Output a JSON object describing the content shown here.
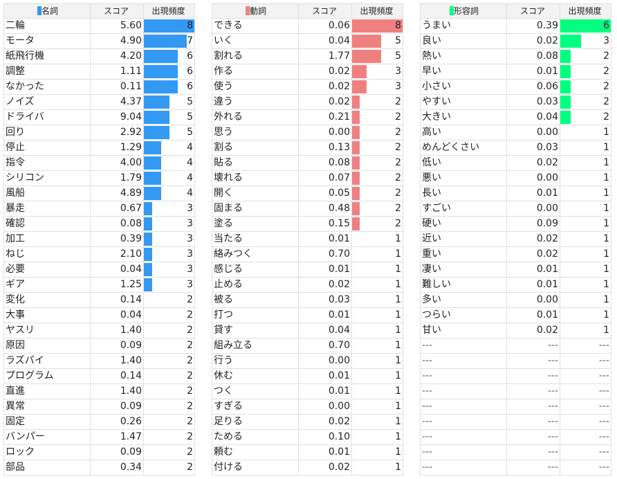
{
  "tables": [
    {
      "header": [
        "名詞",
        "スコア",
        "出現頻度"
      ],
      "color": "#3399f3",
      "rows": [
        [
          "二輪",
          "5.60",
          8
        ],
        [
          "モータ",
          "4.90",
          7
        ],
        [
          "紙飛行機",
          "4.20",
          6
        ],
        [
          "調整",
          "1.11",
          6
        ],
        [
          "なかった",
          "0.11",
          6
        ],
        [
          "ノイズ",
          "4.37",
          5
        ],
        [
          "ドライバ",
          "9.04",
          5
        ],
        [
          "回り",
          "2.92",
          5
        ],
        [
          "停止",
          "1.29",
          4
        ],
        [
          "指令",
          "4.00",
          4
        ],
        [
          "シリコン",
          "1.79",
          4
        ],
        [
          "風船",
          "4.89",
          4
        ],
        [
          "暴走",
          "0.67",
          3
        ],
        [
          "確認",
          "0.08",
          3
        ],
        [
          "加工",
          "0.39",
          3
        ],
        [
          "ねじ",
          "2.10",
          3
        ],
        [
          "必要",
          "0.04",
          3
        ],
        [
          "ギア",
          "1.25",
          3
        ],
        [
          "変化",
          "0.14",
          2
        ],
        [
          "大事",
          "0.04",
          2
        ],
        [
          "ヤスリ",
          "1.40",
          2
        ],
        [
          "原因",
          "0.09",
          2
        ],
        [
          "ラズパイ",
          "1.40",
          2
        ],
        [
          "プログラム",
          "0.14",
          2
        ],
        [
          "直進",
          "1.40",
          2
        ],
        [
          "異常",
          "0.09",
          2
        ],
        [
          "固定",
          "0.26",
          2
        ],
        [
          "バンパー",
          "1.47",
          2
        ],
        [
          "ロック",
          "0.09",
          2
        ],
        [
          "部品",
          "0.34",
          2
        ]
      ]
    },
    {
      "header": [
        "動詞",
        "スコア",
        "出現頻度"
      ],
      "color": "#f08080",
      "rows": [
        [
          "できる",
          "0.06",
          8
        ],
        [
          "いく",
          "0.04",
          5
        ],
        [
          "割れる",
          "1.77",
          5
        ],
        [
          "作る",
          "0.02",
          3
        ],
        [
          "使う",
          "0.02",
          3
        ],
        [
          "違う",
          "0.02",
          2
        ],
        [
          "外れる",
          "0.21",
          2
        ],
        [
          "思う",
          "0.00",
          2
        ],
        [
          "割る",
          "0.13",
          2
        ],
        [
          "貼る",
          "0.08",
          2
        ],
        [
          "壊れる",
          "0.07",
          2
        ],
        [
          "開く",
          "0.05",
          2
        ],
        [
          "固まる",
          "0.48",
          2
        ],
        [
          "塗る",
          "0.15",
          2
        ],
        [
          "当たる",
          "0.01",
          1
        ],
        [
          "絡みつく",
          "0.70",
          1
        ],
        [
          "感じる",
          "0.01",
          1
        ],
        [
          "止める",
          "0.02",
          1
        ],
        [
          "被る",
          "0.03",
          1
        ],
        [
          "打つ",
          "0.01",
          1
        ],
        [
          "貸す",
          "0.04",
          1
        ],
        [
          "組み立る",
          "0.70",
          1
        ],
        [
          "行う",
          "0.00",
          1
        ],
        [
          "休む",
          "0.01",
          1
        ],
        [
          "つく",
          "0.01",
          1
        ],
        [
          "すぎる",
          "0.00",
          1
        ],
        [
          "足りる",
          "0.02",
          1
        ],
        [
          "ためる",
          "0.10",
          1
        ],
        [
          "頼む",
          "0.01",
          1
        ],
        [
          "付ける",
          "0.02",
          1
        ]
      ]
    },
    {
      "header": [
        "形容詞",
        "スコア",
        "出現頻度"
      ],
      "color": "#00ff80",
      "rows": [
        [
          "うまい",
          "0.39",
          6
        ],
        [
          "良い",
          "0.02",
          3
        ],
        [
          "熱い",
          "0.08",
          2
        ],
        [
          "早い",
          "0.01",
          2
        ],
        [
          "小さい",
          "0.06",
          2
        ],
        [
          "やすい",
          "0.03",
          2
        ],
        [
          "大きい",
          "0.04",
          2
        ],
        [
          "高い",
          "0.00",
          1
        ],
        [
          "めんどくさい",
          "0.03",
          1
        ],
        [
          "低い",
          "0.02",
          1
        ],
        [
          "悪い",
          "0.00",
          1
        ],
        [
          "長い",
          "0.01",
          1
        ],
        [
          "すごい",
          "0.00",
          1
        ],
        [
          "硬い",
          "0.09",
          1
        ],
        [
          "近い",
          "0.02",
          1
        ],
        [
          "重い",
          "0.02",
          1
        ],
        [
          "凄い",
          "0.01",
          1
        ],
        [
          "難しい",
          "0.01",
          1
        ],
        [
          "多い",
          "0.00",
          1
        ],
        [
          "つらい",
          "0.01",
          1
        ],
        [
          "甘い",
          "0.02",
          1
        ],
        [
          "---",
          "---",
          "---"
        ],
        [
          "---",
          "---",
          "---"
        ],
        [
          "---",
          "---",
          "---"
        ],
        [
          "---",
          "---",
          "---"
        ],
        [
          "---",
          "---",
          "---"
        ],
        [
          "---",
          "---",
          "---"
        ],
        [
          "---",
          "---",
          "---"
        ],
        [
          "---",
          "---",
          "---"
        ],
        [
          "---",
          "---",
          "---"
        ]
      ]
    }
  ]
}
